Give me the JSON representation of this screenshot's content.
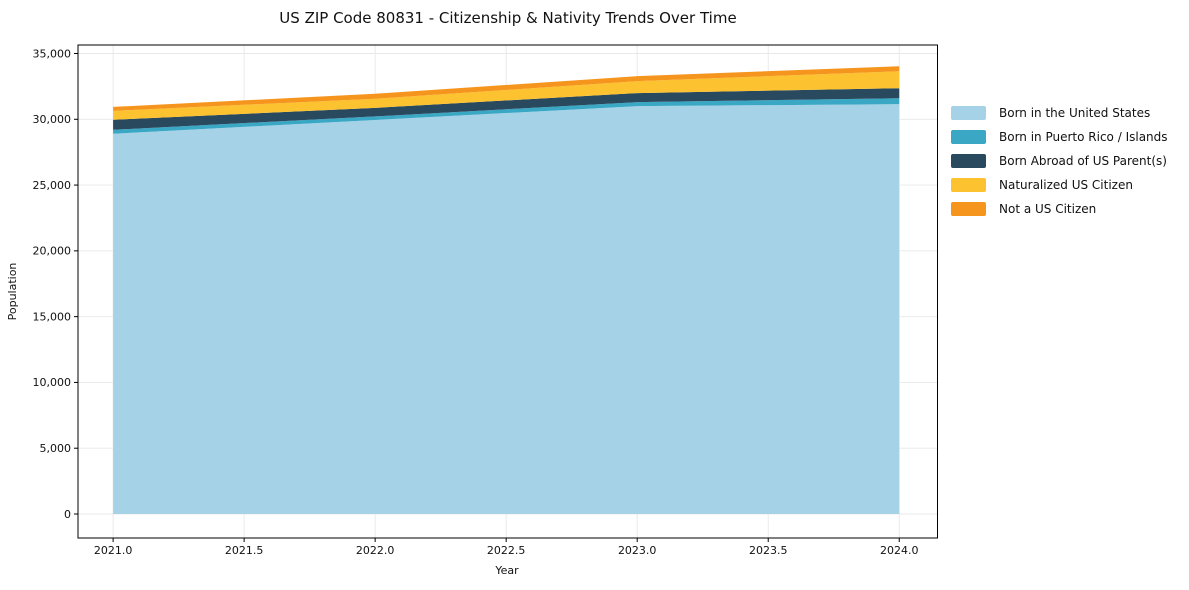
{
  "figure": {
    "background_color": "#ffffff"
  },
  "chart_data": {
    "type": "area",
    "stacked": true,
    "title": "US ZIP Code 80831 - Citizenship & Nativity Trends Over Time",
    "xlabel": "Year",
    "ylabel": "Population",
    "x": [
      2021,
      2022,
      2023,
      2024
    ],
    "series": [
      {
        "name": "Born in the United States",
        "color": "#a6d2e7",
        "values": [
          28900,
          29950,
          31000,
          31150
        ]
      },
      {
        "name": "Born in Puerto Rico / Islands",
        "color": "#3aa8c4",
        "values": [
          300,
          270,
          300,
          450
        ]
      },
      {
        "name": "Born Abroad of US Parent(s)",
        "color": "#29495e",
        "values": [
          760,
          650,
          690,
          760
        ]
      },
      {
        "name": "Naturalized US Citizen",
        "color": "#fcc230",
        "values": [
          680,
          690,
          910,
          1290
        ]
      },
      {
        "name": "Not a US Citizen",
        "color": "#f6951e",
        "values": [
          300,
          380,
          380,
          380
        ]
      }
    ],
    "stack_totals": [
      30940,
      31940,
      33280,
      34030
    ],
    "xticks": {
      "values": [
        2021.0,
        2021.5,
        2022.0,
        2022.5,
        2023.0,
        2023.5,
        2024.0
      ],
      "labels": [
        "2021.0",
        "2021.5",
        "2022.0",
        "2022.5",
        "2023.0",
        "2023.5",
        "2024.0"
      ]
    },
    "yticks": {
      "values": [
        0,
        5000,
        10000,
        15000,
        20000,
        25000,
        30000,
        35000
      ],
      "labels": [
        "0",
        "5,000",
        "10,000",
        "15,000",
        "20,000",
        "25,000",
        "30,000",
        "35,000"
      ]
    },
    "xlim": [
      2020.866,
      2024.146
    ],
    "ylim": [
      -1824,
      35646
    ],
    "grid": true,
    "grid_color": "#e8e8e8",
    "spine_color": "#000000",
    "tick_color": "#000000",
    "text_color": "#111111",
    "legend_position": "right-outside"
  }
}
